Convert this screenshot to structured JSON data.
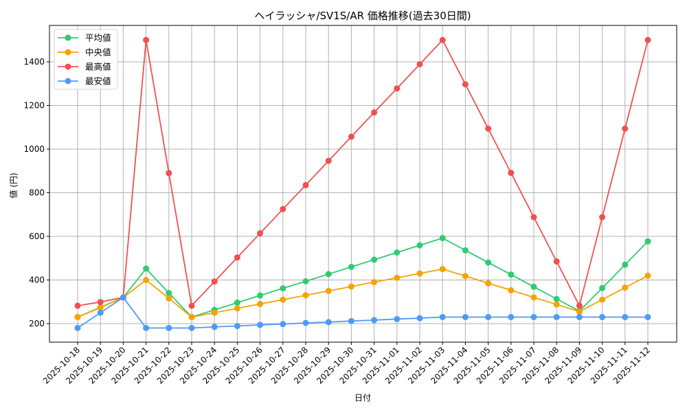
{
  "chart_data": {
    "type": "line",
    "title": "ヘイラッシャ/SV1S/AR 価格推移(過去30日間)",
    "xlabel": "日付",
    "ylabel": "値 (円)",
    "ylim": [
      120,
      1560
    ],
    "yticks": [
      200,
      400,
      600,
      800,
      1000,
      1200,
      1400
    ],
    "grid": true,
    "legend_position": "upper left",
    "categories": [
      "2025-10-18",
      "2025-10-19",
      "2025-10-20",
      "2025-10-21",
      "2025-10-22",
      "2025-10-23",
      "2025-10-24",
      "2025-10-25",
      "2025-10-26",
      "2025-10-27",
      "2025-10-28",
      "2025-10-29",
      "2025-10-30",
      "2025-10-31",
      "2025-11-01",
      "2025-11-02",
      "2025-11-03",
      "2025-11-04",
      "2025-11-05",
      "2025-11-06",
      "2025-11-07",
      "2025-11-08",
      "2025-11-09",
      "2025-11-10",
      "2025-11-11",
      "2025-11-12"
    ],
    "series": [
      {
        "name": "平均値",
        "color": "#2ecc71",
        "values": [
          230,
          275,
          320,
          452,
          340,
          230,
          263,
          296,
          329,
          362,
          394,
          427,
          460,
          493,
          526,
          559,
          592,
          536,
          480,
          425,
          369,
          313,
          258,
          363,
          470,
          577
        ]
      },
      {
        "name": "中央値",
        "color": "#f5a300",
        "values": [
          230,
          273,
          320,
          400,
          316,
          230,
          250,
          270,
          290,
          310,
          330,
          350,
          370,
          390,
          410,
          430,
          450,
          418,
          385,
          353,
          320,
          288,
          255,
          310,
          365,
          420
        ]
      },
      {
        "name": "最高値",
        "color": "#f05050",
        "values": [
          282,
          299,
          320,
          1500,
          890,
          282,
          393,
          503,
          614,
          725,
          835,
          946,
          1057,
          1168,
          1278,
          1389,
          1500,
          1297,
          1094,
          891,
          688,
          485,
          282,
          688,
          1094,
          1500
        ]
      },
      {
        "name": "最安値",
        "color": "#4e9bf5",
        "values": [
          180,
          250,
          320,
          180,
          180,
          180,
          185,
          189,
          194,
          198,
          203,
          207,
          212,
          216,
          221,
          225,
          230,
          230,
          230,
          230,
          230,
          230,
          230,
          230,
          230,
          230
        ]
      }
    ]
  }
}
